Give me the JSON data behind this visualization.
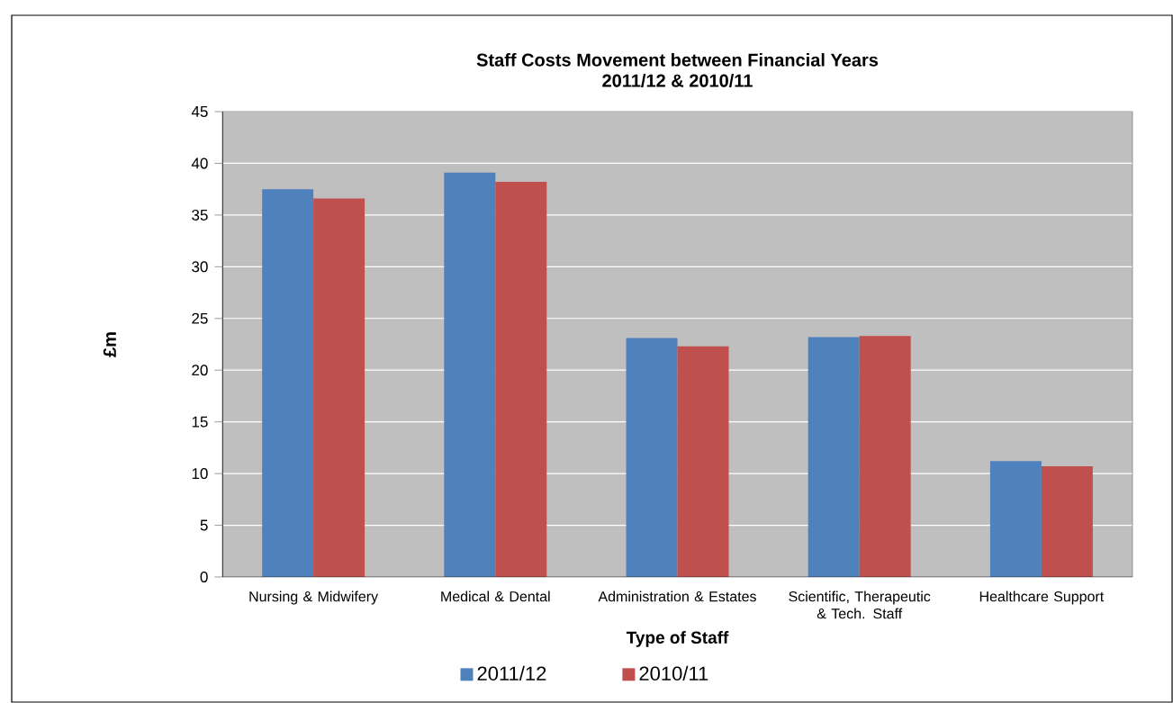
{
  "chart_data": {
    "type": "bar",
    "title": "Staff Costs Movement between Financial Years",
    "subtitle": "2011/12 & 2010/11",
    "xlabel": "Type of Staff",
    "ylabel": "£m",
    "categories": [
      "Nursing & Midwifery",
      "Medical & Dental",
      "Administration & Estates",
      "Scientific, Therapeutic & Tech. Staff",
      "Healthcare Support"
    ],
    "series": [
      {
        "name": "2011/12",
        "color": "#4f81bd",
        "values": [
          37.5,
          39.1,
          23.1,
          23.2,
          11.2
        ]
      },
      {
        "name": "2010/11",
        "color": "#c0504d",
        "values": [
          36.6,
          38.2,
          22.3,
          23.3,
          10.7
        ]
      }
    ],
    "ylim": [
      0,
      45
    ],
    "yticks": [
      0,
      5,
      10,
      15,
      20,
      25,
      30,
      35,
      40,
      45
    ],
    "grid": "y",
    "legend": "bottom"
  }
}
